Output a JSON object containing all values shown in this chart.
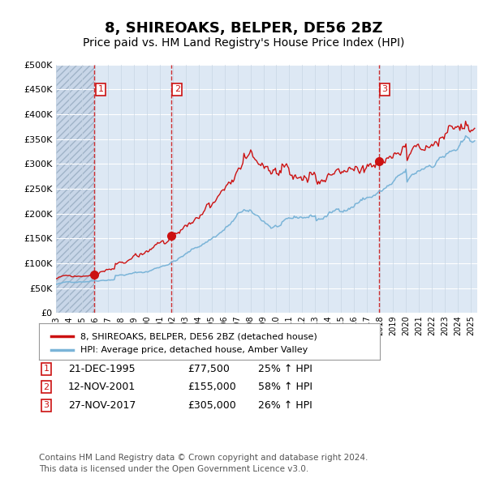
{
  "title": "8, SHIREOAKS, BELPER, DE56 2BZ",
  "subtitle": "Price paid vs. HM Land Registry's House Price Index (HPI)",
  "legend_line1": "8, SHIREOAKS, BELPER, DE56 2BZ (detached house)",
  "legend_line2": "HPI: Average price, detached house, Amber Valley",
  "transactions": [
    {
      "label": "1",
      "date_num": 1995.97,
      "price": 77500,
      "pct": "25%",
      "date_str": "21-DEC-1995"
    },
    {
      "label": "2",
      "date_num": 2001.87,
      "price": 155000,
      "pct": "58%",
      "date_str": "12-NOV-2001"
    },
    {
      "label": "3",
      "date_num": 2017.9,
      "price": 305000,
      "pct": "26%",
      "date_str": "27-NOV-2017"
    }
  ],
  "xlim": [
    1993.0,
    2025.5
  ],
  "ylim": [
    0,
    500000
  ],
  "yticks": [
    0,
    50000,
    100000,
    150000,
    200000,
    250000,
    300000,
    350000,
    400000,
    450000,
    500000
  ],
  "ytick_labels": [
    "£0",
    "£50K",
    "£100K",
    "£150K",
    "£200K",
    "£250K",
    "£300K",
    "£350K",
    "£400K",
    "£450K",
    "£500K"
  ],
  "xtick_years": [
    1993,
    1994,
    1995,
    1996,
    1997,
    1998,
    1999,
    2000,
    2001,
    2002,
    2003,
    2004,
    2005,
    2006,
    2007,
    2008,
    2009,
    2010,
    2011,
    2012,
    2013,
    2014,
    2015,
    2016,
    2017,
    2018,
    2019,
    2020,
    2021,
    2022,
    2023,
    2024,
    2025
  ],
  "hpi_color": "#7ab4d8",
  "price_color": "#cc1111",
  "dot_color": "#cc1111",
  "vline_color": "#cc1111",
  "bg_color": "#dde8f4",
  "hatch_bg_color": "#c8d6e8",
  "grid_color": "#ffffff",
  "footer": "Contains HM Land Registry data © Crown copyright and database right 2024.\nThis data is licensed under the Open Government Licence v3.0.",
  "footer_fontsize": 7.5,
  "title_fontsize": 13,
  "subtitle_fontsize": 10
}
